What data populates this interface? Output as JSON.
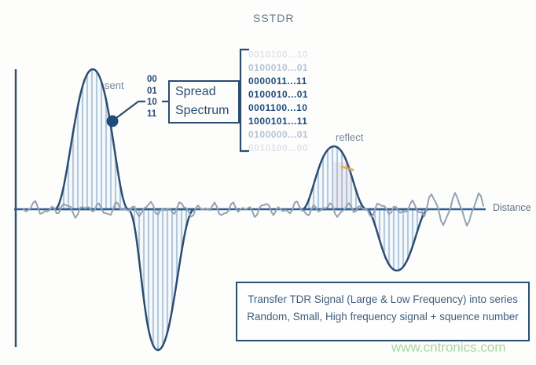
{
  "title": "SSTDR",
  "signal_labels": {
    "sent": "sent",
    "reflect": "reflect",
    "axis": "Distance"
  },
  "sequence_bits": [
    "00",
    "01",
    "10",
    "11"
  ],
  "spread_box": {
    "line1": "Spread",
    "line2": "Spectrum"
  },
  "codes": [
    "0010100...10",
    "0100010...01",
    "0000011...11",
    "0100010...01",
    "0001100...10",
    "1000101...11",
    "0100000...01",
    "0010100...00"
  ],
  "note": {
    "line1": "Transfer TDR Signal (Large & Low Frequency) into series",
    "line2": "Random, Small, High frequency signal + squence number"
  },
  "watermark": "www.cntronics.com",
  "colors": {
    "outline_navy": "#2b4d72",
    "hatch_blue": "#b3c9de",
    "noise_gray": "#94a3b1",
    "code_navy": "#1f4a7a",
    "artifact_orange": "#e6a23c",
    "watermark_green": "#a8d7a0"
  }
}
